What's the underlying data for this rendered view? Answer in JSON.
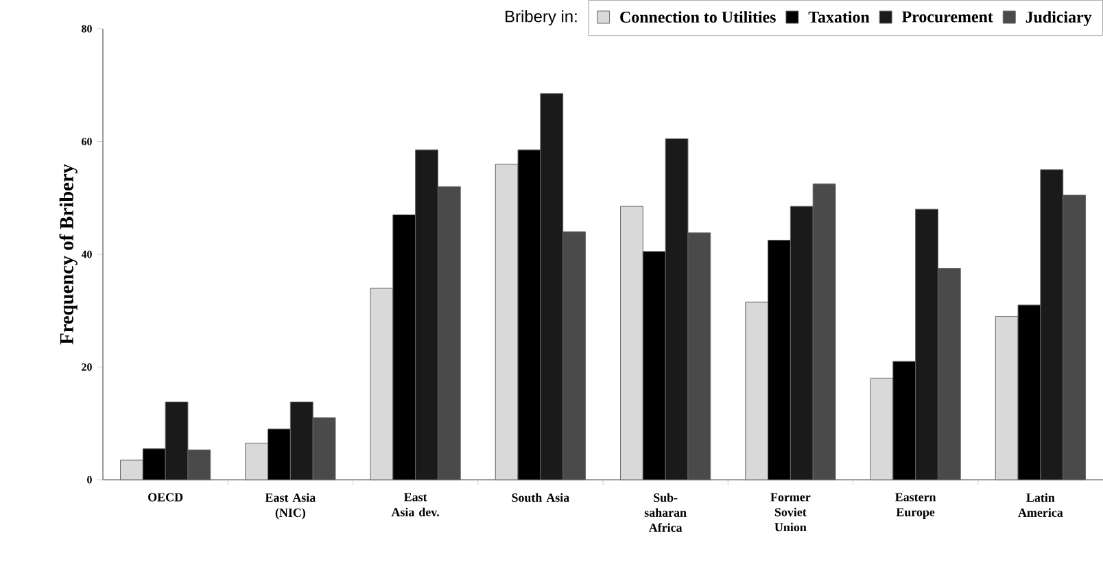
{
  "chart_data": {
    "type": "bar",
    "ylabel": "Frequency of Bribery",
    "legend_title": "Bribery in:",
    "legend": "top right",
    "categories": [
      "OECD",
      "East Asia (NIC)",
      "East Asia dev.",
      "South Asia",
      "Sub-saharan Africa",
      "Former Soviet Union",
      "Eastern Europe",
      "Latin America"
    ],
    "series": [
      {
        "name": "Connection to Utilities",
        "color": "#d9d9d9",
        "values": [
          3.5,
          6.5,
          34,
          56,
          48.5,
          31.5,
          18,
          29
        ]
      },
      {
        "name": "Taxation",
        "color": "#000000",
        "values": [
          5.5,
          9,
          47,
          58.5,
          40.5,
          42.5,
          21,
          31
        ]
      },
      {
        "name": "Procurement",
        "color": "#1a1a1a",
        "values": [
          13.8,
          13.8,
          58.5,
          68.5,
          60.5,
          48.5,
          48,
          55
        ]
      },
      {
        "name": "Judiciary",
        "color": "#4a4a4a",
        "values": [
          5.3,
          11,
          52,
          44,
          43.8,
          52.5,
          37.5,
          50.5
        ]
      }
    ],
    "ylim": [
      0,
      80
    ],
    "yticks": [
      0,
      20,
      40,
      60,
      80
    ],
    "grid": false
  }
}
